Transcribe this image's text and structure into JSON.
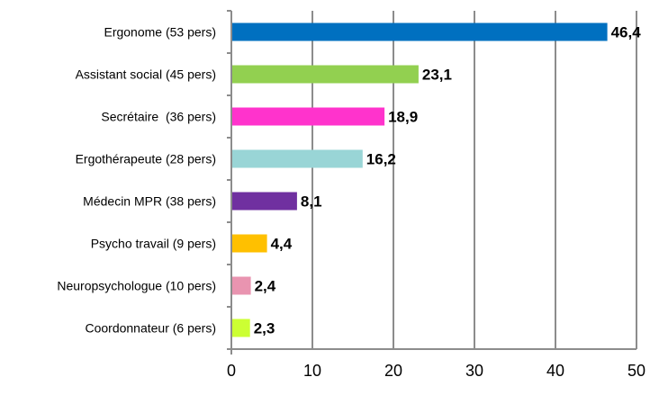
{
  "chart_data": {
    "type": "bar",
    "orientation": "horizontal",
    "categories": [
      "Ergonome (53 pers)",
      "Assistant social (45 pers)",
      "Secrétaire  (36 pers)",
      "Ergothérapeute (28 pers)",
      "Médecin MPR (38 pers)",
      "Psycho travail (9 pers)",
      "Neuropsychologue (10 pers)",
      "Coordonnateur (6 pers)"
    ],
    "values": [
      46.4,
      23.1,
      18.9,
      16.2,
      8.1,
      4.4,
      2.4,
      2.3
    ],
    "value_labels": [
      "46,4",
      "23,1",
      "18,9",
      "16,2",
      "8,1",
      "4,4",
      "2,4",
      "2,3"
    ],
    "colors": [
      "#0070C0",
      "#92D050",
      "#FF33CC",
      "#99D5D6",
      "#7030A0",
      "#FFC000",
      "#E994B0",
      "#CCFF33"
    ],
    "x_ticks": [
      0,
      10,
      20,
      30,
      40,
      50
    ],
    "xlim": [
      0,
      50
    ],
    "grid": "vertical",
    "title": "",
    "xlabel": "",
    "ylabel": ""
  }
}
